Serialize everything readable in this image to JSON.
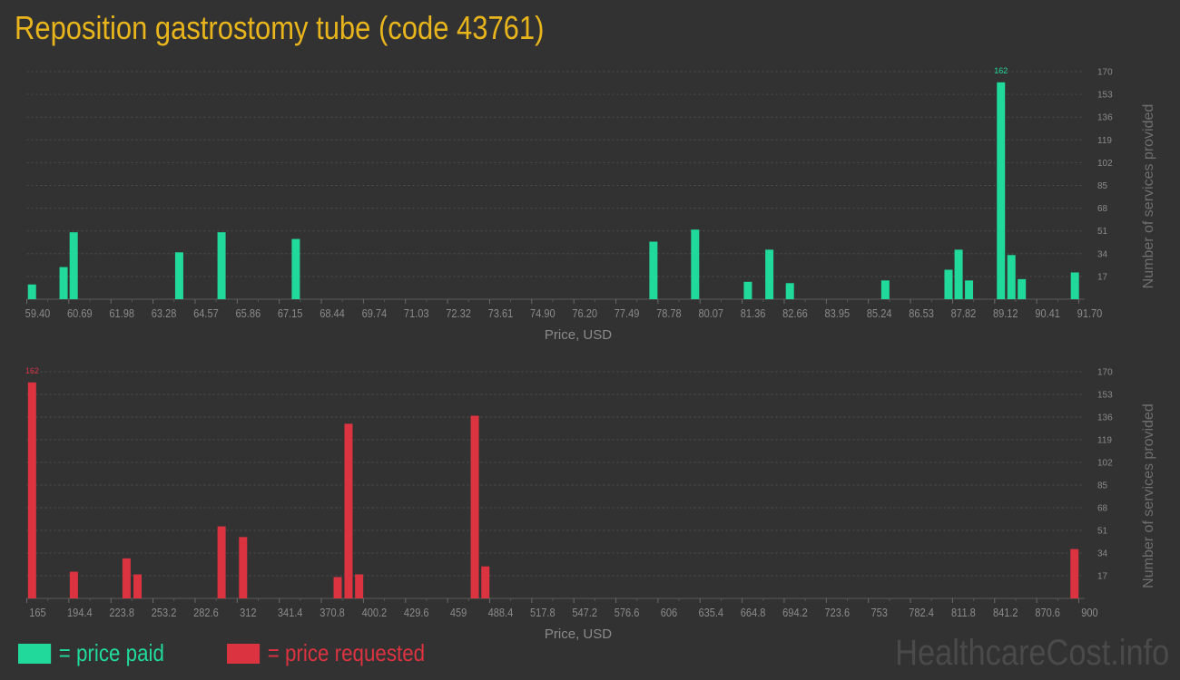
{
  "title": "Reposition gastrostomy tube (code 43761)",
  "colors": {
    "paid": "#20d99b",
    "requested": "#dc3341",
    "title": "#e8b51c",
    "background": "#323232"
  },
  "legend": {
    "paid": "= price paid",
    "requested": "= price requested"
  },
  "watermark": "HealthcareCost.info",
  "chart_data": [
    {
      "type": "bar",
      "series": [
        {
          "name": "price paid",
          "color": "#20d99b"
        }
      ],
      "xlabel": "Price, USD",
      "ylabel": "Number of services provided",
      "xlim": [
        59.4,
        91.7
      ],
      "ylim": [
        0,
        170
      ],
      "grid": true,
      "x_ticks": [
        "59.40",
        "60.69",
        "61.98",
        "63.28",
        "64.57",
        "65.86",
        "67.15",
        "68.44",
        "69.74",
        "71.03",
        "72.32",
        "73.61",
        "74.90",
        "76.20",
        "77.49",
        "78.78",
        "80.07",
        "81.36",
        "82.66",
        "83.95",
        "85.24",
        "86.53",
        "87.82",
        "89.12",
        "90.41",
        "91.70"
      ],
      "y_ticks": [
        "17",
        "34",
        "51",
        "68",
        "85",
        "102",
        "119",
        "136",
        "153",
        "170"
      ],
      "x": [
        59.56,
        60.53,
        60.84,
        64.08,
        65.38,
        67.66,
        78.64,
        79.92,
        81.54,
        82.2,
        82.83,
        85.76,
        87.7,
        88.01,
        88.33,
        89.31,
        89.63,
        89.95,
        91.58
      ],
      "values": [
        11,
        24,
        50,
        35,
        50,
        45,
        43,
        52,
        13,
        37,
        12,
        14,
        22,
        37,
        14,
        162,
        33,
        15,
        20
      ],
      "max_label": "162"
    },
    {
      "type": "bar",
      "series": [
        {
          "name": "price requested",
          "color": "#dc3341"
        }
      ],
      "xlabel": "Price, USD",
      "ylabel": "Number of services provided",
      "xlim": [
        165,
        900
      ],
      "ylim": [
        0,
        170
      ],
      "grid": true,
      "x_ticks": [
        "165",
        "194.4",
        "223.8",
        "253.2",
        "282.6",
        "312",
        "341.4",
        "370.8",
        "400.2",
        "429.6",
        "459",
        "488.4",
        "517.8",
        "547.2",
        "576.6",
        "606",
        "635.4",
        "664.8",
        "694.2",
        "723.6",
        "753",
        "782.4",
        "811.8",
        "841.2",
        "870.6",
        "900"
      ],
      "y_ticks": [
        "17",
        "34",
        "51",
        "68",
        "85",
        "102",
        "119",
        "136",
        "153",
        "170"
      ],
      "x": [
        168.7,
        197.9,
        234.7,
        242.4,
        301.1,
        316.1,
        382.2,
        389.8,
        397.2,
        478.0,
        485.4,
        897
      ],
      "values": [
        162,
        20,
        30,
        18,
        54,
        46,
        16,
        131,
        18,
        137,
        24,
        37
      ],
      "max_label": "162"
    }
  ]
}
